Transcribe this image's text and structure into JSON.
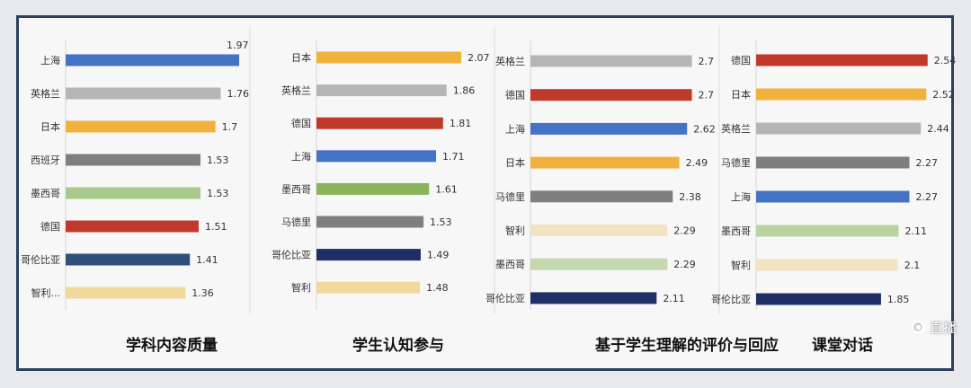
{
  "chart_data": [
    {
      "type": "bar",
      "orientation": "horizontal",
      "title": "学科内容质量",
      "categories": [
        "上海",
        "英格兰",
        "日本",
        "西班牙",
        "墨西哥",
        "德国",
        "哥伦比亚",
        "智利..."
      ],
      "values": [
        1.97,
        1.76,
        1.7,
        1.53,
        1.53,
        1.51,
        1.41,
        1.36
      ],
      "value_labels": [
        "1.97",
        "1.76",
        "1.7",
        "1.53",
        "1.53",
        "1.51",
        "1.41",
        "1.36"
      ],
      "colors": [
        "#4472c4",
        "#b5b5b5",
        "#f0b23c",
        "#7f7f7f",
        "#a9c98a",
        "#c0392b",
        "#2e4f7a",
        "#f0d99a"
      ],
      "xlim": [
        0,
        2.0
      ]
    },
    {
      "type": "bar",
      "orientation": "horizontal",
      "title": "学生认知参与",
      "categories": [
        "日本",
        "英格兰",
        "德国",
        "上海",
        "墨西哥",
        "马德里",
        "哥伦比亚",
        "智利"
      ],
      "values": [
        2.07,
        1.86,
        1.81,
        1.71,
        1.61,
        1.53,
        1.49,
        1.48
      ],
      "value_labels": [
        "2.07",
        "1.86",
        "1.81",
        "1.71",
        "1.61",
        "1.53",
        "1.49",
        "1.48"
      ],
      "colors": [
        "#f0b23c",
        "#b5b5b5",
        "#c0392b",
        "#4472c4",
        "#8bb55a",
        "#7f7f7f",
        "#1f2f66",
        "#f0d99a"
      ],
      "xlim": [
        0,
        2.1
      ]
    },
    {
      "type": "bar",
      "orientation": "horizontal",
      "title": "基于学生理解的评价与回应",
      "categories": [
        "英格兰",
        "德国",
        "上海",
        "日本",
        "马德里",
        "智利",
        "墨西哥",
        "哥伦比亚"
      ],
      "values": [
        2.7,
        2.7,
        2.62,
        2.49,
        2.38,
        2.29,
        2.29,
        2.11
      ],
      "value_labels": [
        "2.7",
        "2.7",
        "2.62",
        "2.49",
        "2.38",
        "2.29",
        "2.29",
        "2.11"
      ],
      "colors": [
        "#b5b5b5",
        "#c0392b",
        "#4472c4",
        "#f0b23c",
        "#7f7f7f",
        "#f2e3c3",
        "#c4d8b0",
        "#1f2f66"
      ],
      "xlim": [
        0,
        2.8
      ]
    },
    {
      "type": "bar",
      "orientation": "horizontal",
      "title": "课堂对话",
      "categories": [
        "德国",
        "日本",
        "英格兰",
        "马德里",
        "上海",
        "墨西哥",
        "智利",
        "哥伦比亚"
      ],
      "values": [
        2.54,
        2.52,
        2.44,
        2.27,
        2.27,
        2.11,
        2.1,
        1.85
      ],
      "value_labels": [
        "2.54",
        "2.52",
        "2.44",
        "2.27",
        "2.27",
        "2.11",
        "2.1",
        "1.85"
      ],
      "colors": [
        "#c0392b",
        "#f0b23c",
        "#b5b5b5",
        "#7f7f7f",
        "#4472c4",
        "#b8d3a0",
        "#f2e3c3",
        "#1f2f66"
      ],
      "xlim": [
        0,
        2.6
      ]
    }
  ],
  "overlay": {
    "text": "直播"
  }
}
